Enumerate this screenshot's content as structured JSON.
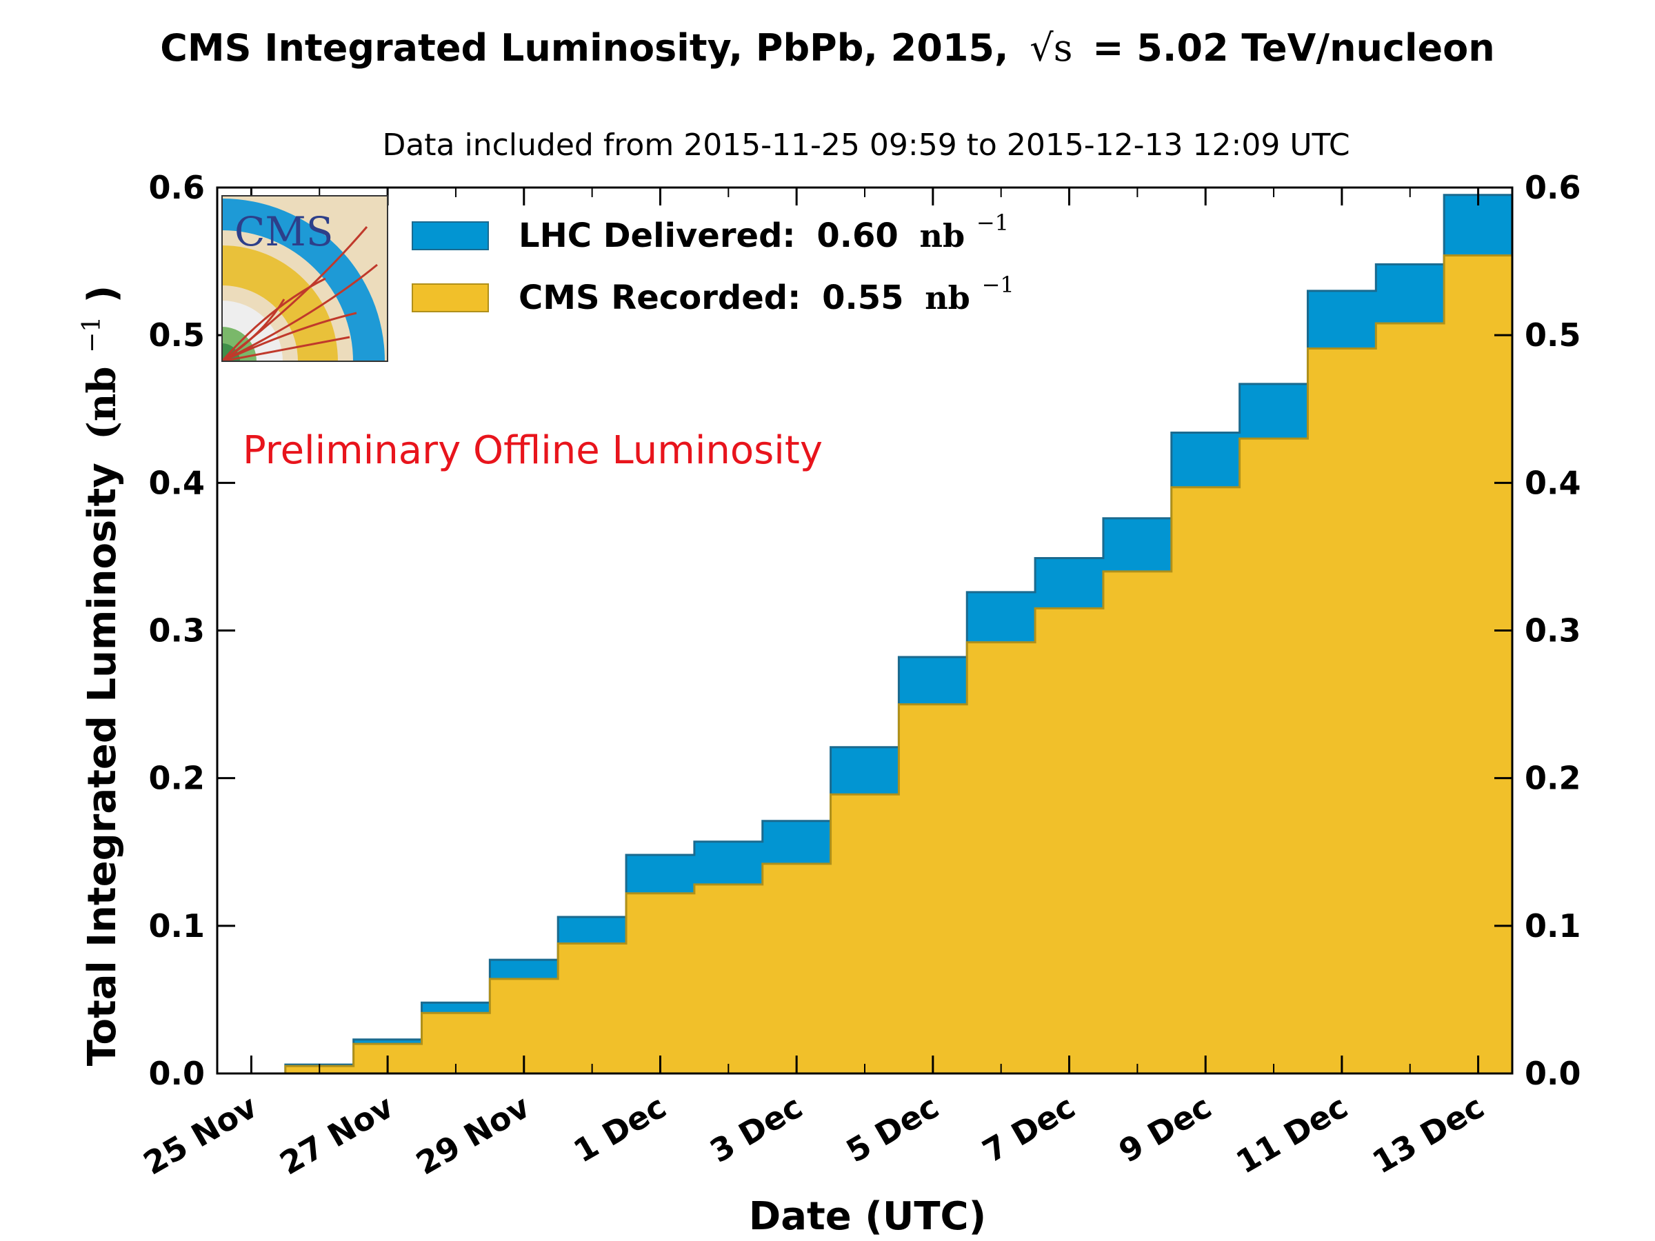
{
  "chart_data": {
    "type": "area",
    "title": "CMS Integrated Luminosity, PbPb, 2015,",
    "title_energy": "= 5.02 TeV/nucleon",
    "title_sqrt_symbol": "√s",
    "subtitle": "Data included from 2015-11-25 09:59 to 2015-12-13 12:09 UTC",
    "xlabel": "Date (UTC)",
    "ylabel": "Total Integrated Luminosity",
    "ylabel_unit": "(nb",
    "ylabel_unit_exp": "−1",
    "ylabel_unit_close": ")",
    "xlim": [
      -0.5,
      18.5
    ],
    "ylim": [
      0,
      0.6
    ],
    "yticks": [
      0.0,
      0.1,
      0.2,
      0.3,
      0.4,
      0.5,
      0.6
    ],
    "ytick_labels": [
      "0.0",
      "0.1",
      "0.2",
      "0.3",
      "0.4",
      "0.5",
      "0.6"
    ],
    "xticks": [
      0,
      2,
      4,
      6,
      8,
      10,
      12,
      14,
      16,
      18
    ],
    "xtick_labels": [
      "25 Nov",
      "27 Nov",
      "29 Nov",
      "1 Dec",
      "3 Dec",
      "5 Dec",
      "7 Dec",
      "9 Dec",
      "11 Dec",
      "13 Dec"
    ],
    "x": [
      "2015-11-25",
      "2015-11-26",
      "2015-11-27",
      "2015-11-28",
      "2015-11-29",
      "2015-11-30",
      "2015-12-01",
      "2015-12-02",
      "2015-12-03",
      "2015-12-04",
      "2015-12-05",
      "2015-12-06",
      "2015-12-07",
      "2015-12-08",
      "2015-12-09",
      "2015-12-10",
      "2015-12-11",
      "2015-12-12",
      "2015-12-13"
    ],
    "series": [
      {
        "name": "LHC Delivered:",
        "value_label": "0.60",
        "unit": "nb",
        "unit_exp": "−1",
        "color": "#0295d2",
        "edge": "#1a6a8f",
        "values": [
          0.0,
          0.006,
          0.023,
          0.048,
          0.077,
          0.106,
          0.148,
          0.157,
          0.171,
          0.221,
          0.282,
          0.326,
          0.349,
          0.376,
          0.434,
          0.467,
          0.53,
          0.548,
          0.595
        ]
      },
      {
        "name": "CMS Recorded:",
        "value_label": "0.55",
        "unit": "nb",
        "unit_exp": "−1",
        "color": "#f1c02a",
        "edge": "#b0901a",
        "values": [
          0.0,
          0.005,
          0.02,
          0.041,
          0.064,
          0.088,
          0.122,
          0.128,
          0.142,
          0.189,
          0.25,
          0.292,
          0.315,
          0.34,
          0.397,
          0.43,
          0.491,
          0.508,
          0.554
        ]
      }
    ],
    "legend_position": "top-left",
    "grid": false,
    "annotation": "Preliminary Offline Luminosity",
    "annotation_color": "#e8141c",
    "logo_text": "CMS"
  }
}
